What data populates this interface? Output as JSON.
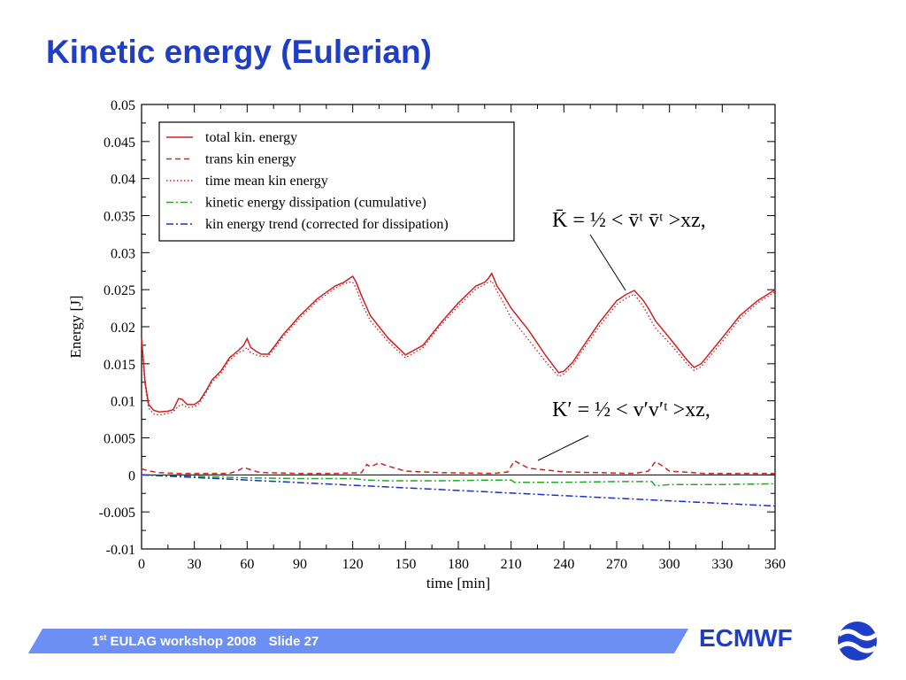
{
  "slide": {
    "title": "Kinetic energy (Eulerian)",
    "footer_ordinal": "1",
    "footer_sup": "st",
    "footer_event": " EULAG workshop 2008",
    "footer_slide": "Slide 27",
    "brand": "ECMWF"
  },
  "formulas": {
    "mean": "K̄ = ½ < v̄ᵗ v̄ᵗ >xz,",
    "perturbation": "K′ = ½ < v′v′ᵗ >xz,"
  },
  "chart_data": {
    "type": "line",
    "title": "",
    "xlabel": "time [min]",
    "ylabel": "Energy [J]",
    "xlim": [
      0,
      360
    ],
    "ylim": [
      -0.01,
      0.05
    ],
    "xticks": [
      0,
      30,
      60,
      90,
      120,
      150,
      180,
      210,
      240,
      270,
      300,
      330,
      360
    ],
    "yticks": [
      "-0.01",
      "-0.005",
      "0",
      "0.005",
      "0.01",
      "0.015",
      "0.02",
      "0.025",
      "0.03",
      "0.035",
      "0.04",
      "0.045",
      "0.05"
    ],
    "grid": false,
    "legend_position": "top-left",
    "series": [
      {
        "name": "total kin. energy",
        "color": "#cc2222",
        "style": "solid",
        "x": [
          0,
          2,
          4,
          7,
          10,
          15,
          18,
          21,
          23,
          26,
          30,
          33,
          37,
          40,
          45,
          50,
          55,
          58,
          60,
          62,
          65,
          68,
          72,
          76,
          80,
          90,
          100,
          110,
          115,
          118,
          120,
          122,
          125,
          130,
          140,
          150,
          160,
          170,
          180,
          190,
          195,
          197,
          199,
          202,
          205,
          210,
          220,
          230,
          237,
          240,
          245,
          250,
          260,
          270,
          275,
          280,
          285,
          288,
          292,
          300,
          310,
          314,
          318,
          330,
          340,
          350,
          360
        ],
        "y": [
          0.0185,
          0.0125,
          0.0095,
          0.0087,
          0.0085,
          0.0086,
          0.0088,
          0.0103,
          0.0102,
          0.0095,
          0.0095,
          0.01,
          0.0115,
          0.0128,
          0.014,
          0.0158,
          0.0168,
          0.0175,
          0.0184,
          0.0172,
          0.0167,
          0.0163,
          0.0163,
          0.0175,
          0.0188,
          0.0215,
          0.0238,
          0.0255,
          0.026,
          0.0265,
          0.0268,
          0.026,
          0.0242,
          0.0215,
          0.0185,
          0.0162,
          0.0175,
          0.0205,
          0.0232,
          0.0255,
          0.026,
          0.0265,
          0.0272,
          0.0255,
          0.0245,
          0.0225,
          0.0195,
          0.016,
          0.0138,
          0.014,
          0.0152,
          0.017,
          0.0205,
          0.0235,
          0.0243,
          0.0249,
          0.0236,
          0.0225,
          0.0208,
          0.0185,
          0.0155,
          0.0145,
          0.015,
          0.0185,
          0.0215,
          0.0235,
          0.025
        ]
      },
      {
        "name": "trans kin energy",
        "color": "#cc2222",
        "style": "dashed",
        "x": [
          0,
          5,
          10,
          20,
          30,
          50,
          55,
          58,
          62,
          66,
          70,
          90,
          110,
          125,
          128,
          130,
          135,
          140,
          150,
          170,
          200,
          208,
          212,
          215,
          220,
          240,
          260,
          280,
          288,
          292,
          296,
          300,
          320,
          340,
          360
        ],
        "y": [
          0.0008,
          0.0005,
          0.0003,
          0.0002,
          0.0002,
          0.0002,
          0.0006,
          0.001,
          0.0007,
          0.0004,
          0.0003,
          0.0002,
          0.0002,
          0.0003,
          0.0014,
          0.0011,
          0.0016,
          0.0012,
          0.0005,
          0.0003,
          0.0002,
          0.0004,
          0.0019,
          0.0015,
          0.0009,
          0.0004,
          0.0003,
          0.0002,
          0.0005,
          0.0018,
          0.0012,
          0.0005,
          0.0002,
          0.0002,
          0.0002
        ]
      },
      {
        "name": "time mean kin energy",
        "color": "#cc2222",
        "style": "dotted",
        "x": [
          0,
          2,
          4,
          7,
          10,
          15,
          18,
          21,
          23,
          26,
          30,
          33,
          37,
          40,
          45,
          50,
          55,
          58,
          60,
          62,
          65,
          68,
          72,
          76,
          80,
          90,
          100,
          110,
          115,
          118,
          120,
          122,
          125,
          130,
          140,
          150,
          160,
          170,
          180,
          190,
          195,
          197,
          199,
          202,
          205,
          210,
          220,
          230,
          237,
          240,
          245,
          250,
          260,
          270,
          275,
          280,
          285,
          288,
          292,
          300,
          310,
          314,
          318,
          330,
          340,
          350,
          360
        ],
        "y": [
          0.0175,
          0.012,
          0.009,
          0.0082,
          0.0081,
          0.0083,
          0.0085,
          0.0093,
          0.0095,
          0.0091,
          0.0092,
          0.0097,
          0.0112,
          0.0125,
          0.0137,
          0.0155,
          0.0165,
          0.0168,
          0.0172,
          0.0165,
          0.0162,
          0.016,
          0.016,
          0.0172,
          0.0185,
          0.0212,
          0.0235,
          0.0252,
          0.0258,
          0.026,
          0.026,
          0.0252,
          0.0232,
          0.0208,
          0.018,
          0.0158,
          0.0172,
          0.0202,
          0.0228,
          0.0251,
          0.0257,
          0.026,
          0.0262,
          0.0248,
          0.0235,
          0.0212,
          0.0182,
          0.0152,
          0.0133,
          0.0136,
          0.0148,
          0.0166,
          0.02,
          0.023,
          0.0238,
          0.0244,
          0.0228,
          0.0215,
          0.0198,
          0.0178,
          0.015,
          0.0141,
          0.0146,
          0.018,
          0.0211,
          0.0232,
          0.0247
        ]
      },
      {
        "name": "kinetic energy dissipation (cumulative)",
        "color": "#22aa22",
        "style": "dashdot",
        "x": [
          0,
          30,
          60,
          90,
          120,
          128,
          140,
          170,
          200,
          210,
          212,
          240,
          270,
          290,
          292,
          300,
          330,
          360
        ],
        "y": [
          0,
          -0.0002,
          -0.0004,
          -0.0005,
          -0.0005,
          -0.0007,
          -0.0008,
          -0.0008,
          -0.0007,
          -0.0007,
          -0.001,
          -0.001,
          -0.0009,
          -0.0009,
          -0.0015,
          -0.0013,
          -0.0013,
          -0.0012
        ]
      },
      {
        "name": "kin energy trend (corrected for dissipation)",
        "color": "#1a2ecc",
        "style": "dashdot",
        "x": [
          0,
          360
        ],
        "y": [
          0,
          -0.0042
        ]
      }
    ]
  }
}
